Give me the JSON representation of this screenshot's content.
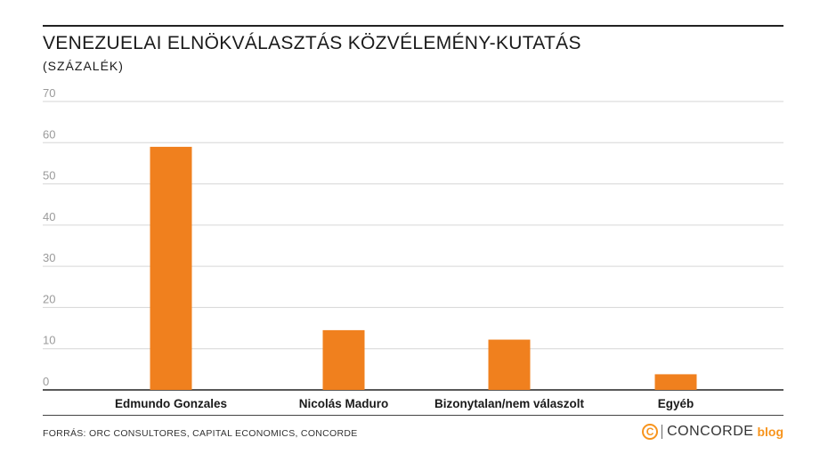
{
  "chart_data": {
    "type": "bar",
    "title": "VENEZUELAI ELNÖKVÁLASZTÁS KÖZVÉLEMÉNY-KUTATÁS",
    "subtitle": "(SZÁZALÉK)",
    "categories": [
      "Edmundo Gonzales",
      "Nicolás Maduro",
      "Bizonytalan/nem válaszolt",
      "Egyéb"
    ],
    "values": [
      59,
      14.5,
      12.2,
      3.8
    ],
    "ylim": [
      0,
      70
    ],
    "yticks": [
      "0",
      "10",
      "20",
      "30",
      "40",
      "50",
      "60",
      "70"
    ],
    "grid": true,
    "bar_color": "#f0801e"
  },
  "footer": {
    "source": "FORRÁS: ORC CONSULTORES, CAPITAL ECONOMICS, CONCORDE",
    "brand_icon": "C",
    "brand_name": "CONCORDE",
    "brand_blog": "blog",
    "brand_color": "#f7941d"
  }
}
